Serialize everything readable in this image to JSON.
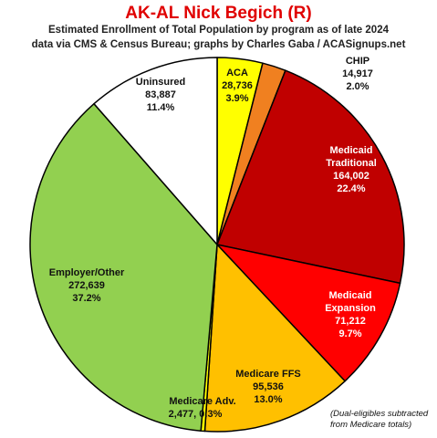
{
  "chart_data": {
    "type": "pie",
    "title": "AK-AL Nick Begich (R)",
    "subtitle": [
      "Estimated Enrollment of Total Population by program as of late 2024",
      "data via CMS & Census Bureau; graphs by Charles Gaba / ACASignups.net"
    ],
    "slices": [
      {
        "label": "ACA",
        "value_text": "28,736",
        "pct_text": "3.9%",
        "value": 28736,
        "color": "#ffff00"
      },
      {
        "label": "CHIP",
        "value_text": "14,917",
        "pct_text": "2.0%",
        "value": 14917,
        "color": "#f08020"
      },
      {
        "label": "Medicaid Traditional",
        "value_text": "164,002",
        "pct_text": "22.4%",
        "value": 164002,
        "color": "#c00000"
      },
      {
        "label": "Medicaid Expansion",
        "value_text": "71,212",
        "pct_text": "9.7%",
        "value": 71212,
        "color": "#ff0000"
      },
      {
        "label": "Medicare FFS",
        "value_text": "95,536",
        "pct_text": "13.0%",
        "value": 95536,
        "color": "#ffc000"
      },
      {
        "label": "Medicare Adv.",
        "value_text": "2,477",
        "pct_text": "0.3%",
        "value": 2477,
        "color": "#ffff00"
      },
      {
        "label": "Employer/Other",
        "value_text": "272,639",
        "pct_text": "37.2%",
        "value": 272639,
        "color": "#92d050"
      },
      {
        "label": "Uninsured",
        "value_text": "83,887",
        "pct_text": "11.4%",
        "value": 83887,
        "color": "#ffffff"
      }
    ],
    "legend": "none"
  },
  "footnote": [
    "(Dual-eligibles subtracted",
    "from Medicare totals)"
  ]
}
